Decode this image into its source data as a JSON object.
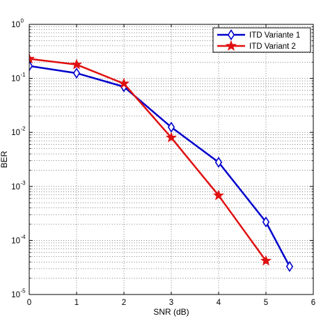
{
  "chart_data": {
    "type": "line",
    "title": "",
    "xlabel": "SNR (dB)",
    "ylabel": "BER",
    "xlim": [
      0,
      6
    ],
    "ylim": [
      1e-05,
      1
    ],
    "yscale": "log",
    "grid": true,
    "legend_position": "top-right",
    "x_ticks": [
      "0",
      "1",
      "2",
      "3",
      "4",
      "5",
      "6"
    ],
    "y_ticks": [
      {
        "base": "10",
        "exp": "0"
      },
      {
        "base": "10",
        "exp": "-1"
      },
      {
        "base": "10",
        "exp": "-2"
      },
      {
        "base": "10",
        "exp": "-3"
      },
      {
        "base": "10",
        "exp": "-4"
      },
      {
        "base": "10",
        "exp": "-5"
      }
    ],
    "series": [
      {
        "name": "ITD Variante 1",
        "color": "#0000cc",
        "marker": "diamond",
        "x": [
          0,
          1,
          2,
          3,
          4,
          5,
          5.5
        ],
        "y": [
          0.17,
          0.125,
          0.07,
          0.0125,
          0.0028,
          0.00022,
          3.3e-05
        ]
      },
      {
        "name": "ITD Variant 2",
        "color": "#e01010",
        "marker": "star",
        "x": [
          0,
          1,
          2,
          3,
          4,
          5
        ],
        "y": [
          0.23,
          0.18,
          0.08,
          0.008,
          0.00068,
          4.2e-05
        ]
      }
    ]
  }
}
